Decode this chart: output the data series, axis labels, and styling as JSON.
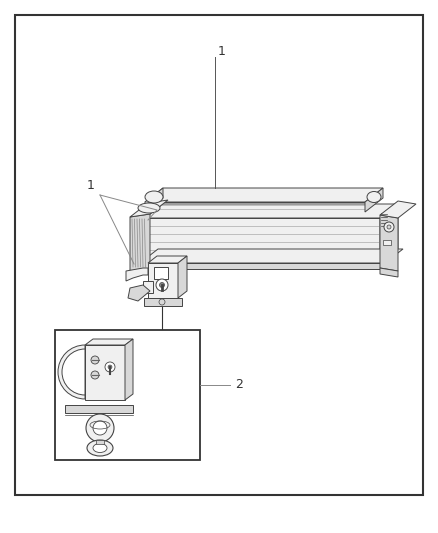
{
  "fig_width": 4.38,
  "fig_height": 5.33,
  "dpi": 100,
  "bg_color": "#ffffff",
  "border_color": "#333333",
  "border_lw": 1.5,
  "line_color": "#444444",
  "light_fill": "#f0f0f0",
  "mid_fill": "#d8d8d8",
  "dark_fill": "#b0b0b0",
  "white_fill": "#ffffff",
  "lw": 0.7,
  "label_color": "#333333"
}
